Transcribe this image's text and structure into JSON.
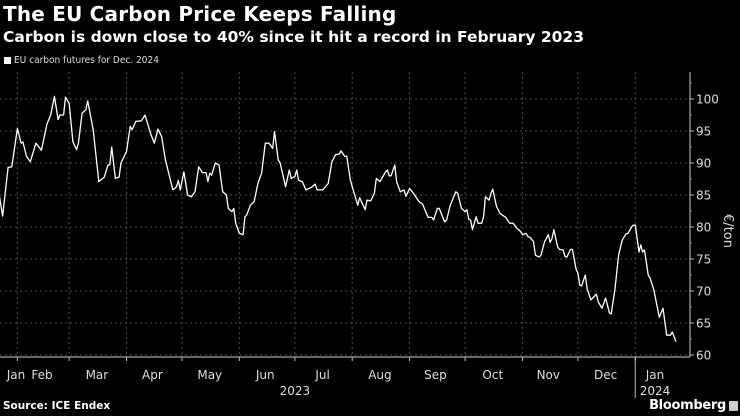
{
  "header": {
    "title": "The EU Carbon Price Keeps Falling",
    "subtitle": "Carbon is down close to 40% since it hit a record in February 2023"
  },
  "footer": {
    "source": "Source: ICE Endex",
    "brand": "Bloomberg"
  },
  "colors": {
    "background": "#000000",
    "line": "#ffffff",
    "grid": "#555555"
  },
  "chart_data": {
    "type": "line",
    "title": "The EU Carbon Price Keeps Falling",
    "subtitle": "Carbon is down close to 40% since it hit a record in February 2023",
    "legend": [
      "EU carbon futures for Dec. 2024"
    ],
    "legend_position": "top-left",
    "ylabel": "€/ton",
    "ylim": [
      60,
      100
    ],
    "y_ticks": [
      "60",
      "65",
      "70",
      "75",
      "80",
      "85",
      "90",
      "95",
      "100"
    ],
    "y_axis_side": "right",
    "x_ticks": [
      "Jan",
      "Feb",
      "Mar",
      "Apr",
      "May",
      "Jun",
      "Jul",
      "Aug",
      "Sep",
      "Oct",
      "Nov",
      "Dec",
      "Jan"
    ],
    "x_year_labels": [
      "2023",
      "2024"
    ],
    "grid": true,
    "series": [
      {
        "name": "EU carbon futures for Dec. 2024",
        "x": [
          "2023-01-22",
          "2023-01-24",
          "2023-01-25",
          "2023-01-27",
          "2023-01-29",
          "2023-02-01",
          "2023-02-03",
          "2023-02-04",
          "2023-02-06",
          "2023-02-08",
          "2023-02-11",
          "2023-02-14",
          "2023-02-17",
          "2023-02-19",
          "2023-02-21",
          "2023-02-23",
          "2023-02-24",
          "2023-02-26",
          "2023-02-27",
          "2023-03-01",
          "2023-03-03",
          "2023-03-05",
          "2023-03-06",
          "2023-03-08",
          "2023-03-10",
          "2023-03-11",
          "2023-03-14",
          "2023-03-17",
          "2023-03-20",
          "2023-03-22",
          "2023-03-23",
          "2023-03-24",
          "2023-03-26",
          "2023-03-28",
          "2023-03-29",
          "2023-04-01",
          "2023-04-03",
          "2023-04-04",
          "2023-04-06",
          "2023-04-09",
          "2023-04-11",
          "2023-04-14",
          "2023-04-16",
          "2023-04-18",
          "2023-04-20",
          "2023-04-22",
          "2023-04-26",
          "2023-04-28",
          "2023-04-29",
          "2023-04-30",
          "2023-05-02",
          "2023-05-04",
          "2023-05-06",
          "2023-05-08",
          "2023-05-10",
          "2023-05-12",
          "2023-05-14",
          "2023-05-15",
          "2023-05-16",
          "2023-05-17",
          "2023-05-19",
          "2023-05-21",
          "2023-05-23",
          "2023-05-25",
          "2023-05-26",
          "2023-05-28",
          "2023-05-29",
          "2023-05-30",
          "2023-06-01",
          "2023-06-03",
          "2023-06-04",
          "2023-06-05",
          "2023-06-07",
          "2023-06-09",
          "2023-06-11",
          "2023-06-13",
          "2023-06-15",
          "2023-06-17",
          "2023-06-19",
          "2023-06-20",
          "2023-06-22",
          "2023-06-23",
          "2023-06-26",
          "2023-06-28",
          "2023-06-29",
          "2023-07-01",
          "2023-07-02",
          "2023-07-03",
          "2023-07-05",
          "2023-07-07",
          "2023-07-10",
          "2023-07-12",
          "2023-07-13",
          "2023-07-16",
          "2023-07-19",
          "2023-07-21",
          "2023-07-23",
          "2023-07-25",
          "2023-07-26",
          "2023-07-28",
          "2023-07-29",
          "2023-07-31",
          "2023-08-02",
          "2023-08-04",
          "2023-08-05",
          "2023-08-08",
          "2023-08-09",
          "2023-08-11",
          "2023-08-13",
          "2023-08-14",
          "2023-08-16",
          "2023-08-19",
          "2023-08-20",
          "2023-08-21",
          "2023-08-22",
          "2023-08-24",
          "2023-08-25",
          "2023-08-27",
          "2023-08-29",
          "2023-08-30",
          "2023-09-01",
          "2023-09-03",
          "2023-09-06",
          "2023-09-08",
          "2023-09-11",
          "2023-09-13",
          "2023-09-14",
          "2023-09-16",
          "2023-09-17",
          "2023-09-20",
          "2023-09-21",
          "2023-09-23",
          "2023-09-26",
          "2023-09-27",
          "2023-09-29",
          "2023-10-01",
          "2023-10-02",
          "2023-10-03",
          "2023-10-04",
          "2023-10-05",
          "2023-10-07",
          "2023-10-08",
          "2023-10-10",
          "2023-10-11",
          "2023-10-12",
          "2023-10-14",
          "2023-10-15",
          "2023-10-16",
          "2023-10-18",
          "2023-10-20",
          "2023-10-23",
          "2023-10-25",
          "2023-10-27",
          "2023-10-29",
          "2023-10-31",
          "2023-11-01",
          "2023-11-03",
          "2023-11-04",
          "2023-11-05",
          "2023-11-07",
          "2023-11-08",
          "2023-11-10",
          "2023-11-11",
          "2023-11-13",
          "2023-11-15",
          "2023-11-16",
          "2023-11-17",
          "2023-11-18",
          "2023-11-20",
          "2023-11-21",
          "2023-11-23",
          "2023-11-24",
          "2023-11-25",
          "2023-11-27",
          "2023-11-28",
          "2023-11-30",
          "2023-12-01",
          "2023-12-02",
          "2023-12-03",
          "2023-12-05",
          "2023-12-06",
          "2023-12-08",
          "2023-12-09",
          "2023-12-11",
          "2023-12-12",
          "2023-12-14",
          "2023-12-15",
          "2023-12-16",
          "2023-12-18",
          "2023-12-19",
          "2023-12-21",
          "2023-12-23",
          "2023-12-25",
          "2023-12-27",
          "2023-12-28",
          "2023-12-30",
          "2023-12-31",
          "2024-01-01",
          "2024-01-03",
          "2024-01-04",
          "2024-01-05",
          "2024-01-06",
          "2024-01-08",
          "2024-01-09",
          "2024-01-11",
          "2024-01-14",
          "2024-01-16",
          "2024-01-18",
          "2024-01-20",
          "2024-01-21",
          "2024-01-23"
        ],
        "y": [
          85.3,
          81.7,
          84.2,
          89.3,
          89.4,
          95.4,
          93.1,
          93.3,
          91.0,
          90.2,
          93.1,
          92.0,
          96.1,
          97.5,
          100.4,
          96.8,
          97.5,
          97.5,
          100.3,
          99.3,
          93.3,
          92.1,
          93.1,
          97.8,
          98.3,
          99.7,
          95.2,
          87.1,
          87.8,
          89.7,
          89.7,
          92.5,
          87.6,
          87.8,
          90.0,
          91.8,
          95.7,
          95.2,
          96.5,
          96.6,
          97.5,
          94.6,
          93.1,
          95.3,
          94.1,
          90.5,
          85.8,
          86.3,
          87.3,
          85.8,
          88.6,
          85.0,
          84.7,
          85.5,
          89.4,
          88.5,
          88.5,
          87.1,
          88.4,
          88.1,
          90.0,
          89.7,
          85.5,
          85.0,
          82.9,
          82.4,
          82.9,
          80.6,
          79.0,
          78.8,
          81.6,
          81.9,
          83.4,
          84.0,
          86.8,
          88.4,
          93.1,
          93.1,
          92.3,
          94.9,
          90.5,
          90.0,
          86.3,
          88.9,
          87.6,
          87.9,
          88.9,
          87.3,
          87.1,
          85.8,
          86.2,
          86.7,
          85.8,
          85.8,
          86.8,
          90.2,
          91.3,
          91.4,
          91.9,
          91.0,
          91.1,
          87.3,
          85.3,
          83.4,
          84.6,
          82.7,
          84.2,
          84.1,
          85.3,
          87.6,
          87.1,
          88.6,
          88.9,
          88.0,
          88.0,
          89.7,
          87.1,
          85.5,
          85.8,
          84.8,
          86.0,
          85.3,
          84.0,
          83.6,
          81.5,
          81.5,
          81.1,
          82.9,
          82.9,
          80.8,
          81.1,
          83.4,
          85.5,
          85.3,
          82.9,
          82.4,
          82.7,
          81.2,
          81.1,
          79.6,
          81.6,
          80.6,
          80.6,
          81.6,
          84.7,
          84.2,
          85.3,
          85.9,
          83.2,
          82.1,
          81.5,
          80.6,
          80.6,
          79.8,
          79.3,
          78.8,
          79.0,
          78.5,
          78.4,
          77.7,
          75.6,
          75.3,
          75.6,
          77.7,
          78.8,
          77.6,
          78.2,
          79.6,
          76.9,
          76.5,
          76.4,
          75.4,
          75.3,
          76.5,
          76.5,
          73.4,
          72.8,
          70.9,
          70.8,
          72.5,
          70.4,
          68.6,
          68.9,
          69.5,
          68.3,
          67.3,
          68.1,
          68.9,
          66.6,
          66.4,
          70.2,
          75.6,
          78.0,
          78.9,
          79.0,
          80.0,
          80.3,
          80.3,
          76.1,
          77.2,
          76.1,
          76.4,
          72.5,
          72.0,
          70.2,
          65.9,
          67.3,
          63.1,
          63.1,
          63.6,
          62.1
        ]
      }
    ]
  }
}
